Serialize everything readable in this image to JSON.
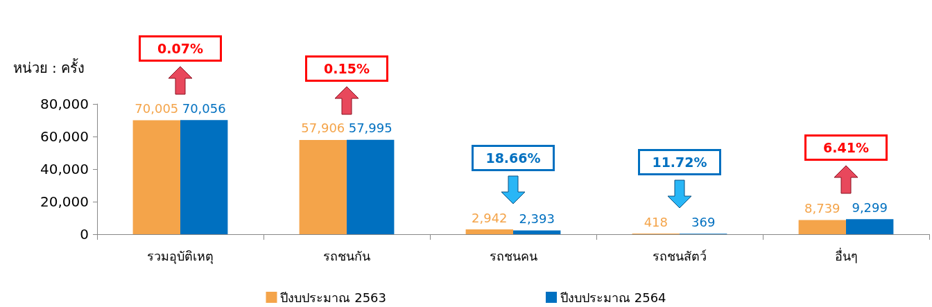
{
  "chart_data": {
    "type": "bar",
    "ylabel": "หน่วย : ครั้ง",
    "categories": [
      "รวมอุบัติเหตุ",
      "รถชนกัน",
      "รถชนคน",
      "รถชนสัตว์",
      "อื่นๆ"
    ],
    "series": [
      {
        "name": "ปีงบประมาณ 2563",
        "color": "#f4a44a",
        "values": [
          70005,
          57906,
          2942,
          418,
          8739
        ],
        "value_labels": [
          "70,005",
          "57,906",
          "2,942",
          "418",
          "8,739"
        ]
      },
      {
        "name": "ปีงบประมาณ 2564",
        "color": "#0070c0",
        "values": [
          70056,
          57995,
          2393,
          369,
          9299
        ],
        "value_labels": [
          "70,056",
          "57,995",
          "2,393",
          "369",
          "9,299"
        ]
      }
    ],
    "ylim": [
      0,
      80000
    ],
    "yticks": [
      {
        "value": 0,
        "label": "0"
      },
      {
        "value": 20000,
        "label": "20,000"
      },
      {
        "value": 40000,
        "label": "40,000"
      },
      {
        "value": 60000,
        "label": "60,000"
      },
      {
        "value": 80000,
        "label": "80,000"
      }
    ],
    "grid": false,
    "legend": "bottom",
    "annotations": [
      "0.07%",
      "0.15%",
      "18.66%",
      "11.72%",
      "6.41%"
    ]
  }
}
